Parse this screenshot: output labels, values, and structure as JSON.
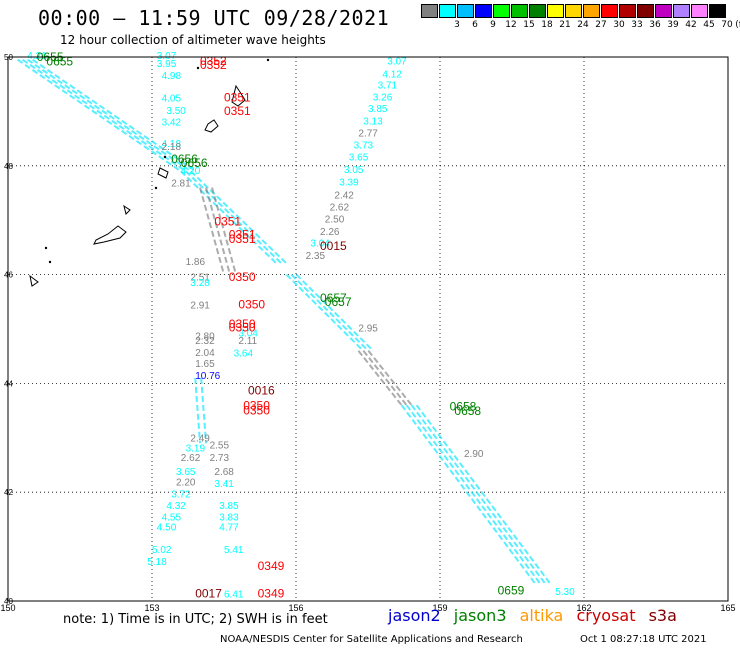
{
  "title": "00:00 – 11:59 UTC 09/28/2021",
  "subtitle": "12 hour collection of altimeter wave heights",
  "color_scale": {
    "unit": "(ft)",
    "swatches": [
      {
        "color": "#808080",
        "label": ""
      },
      {
        "color": "#00ffff",
        "label": "3"
      },
      {
        "color": "#00bfff",
        "label": "6"
      },
      {
        "color": "#0000ff",
        "label": "9"
      },
      {
        "color": "#00ff00",
        "label": "12"
      },
      {
        "color": "#00c000",
        "label": "15"
      },
      {
        "color": "#008000",
        "label": "18"
      },
      {
        "color": "#ffff00",
        "label": "21"
      },
      {
        "color": "#ffd700",
        "label": "24"
      },
      {
        "color": "#ffa500",
        "label": "27"
      },
      {
        "color": "#ff0000",
        "label": "30"
      },
      {
        "color": "#b00000",
        "label": "33"
      },
      {
        "color": "#800000",
        "label": "36"
      },
      {
        "color": "#c000c0",
        "label": "39"
      },
      {
        "color": "#b080ff",
        "label": "42"
      },
      {
        "color": "#ff80ff",
        "label": "45"
      },
      {
        "color": "#000000",
        "label": "70"
      }
    ]
  },
  "axes": {
    "lon_ticks": [
      "150",
      "153",
      "156",
      "159",
      "162",
      "165"
    ],
    "lat_ticks": [
      "50",
      "48",
      "46",
      "44",
      "42",
      "40"
    ]
  },
  "time_labels": [
    {
      "text": "0655",
      "lon": 150.6,
      "lat": 49.93,
      "color": "#008000"
    },
    {
      "text": "0655",
      "lon": 150.8,
      "lat": 49.84,
      "color": "#008000"
    },
    {
      "text": "0352",
      "lon": 154.0,
      "lat": 49.85,
      "color": "#ff0000"
    },
    {
      "text": "0352",
      "lon": 154.0,
      "lat": 49.78,
      "color": "#ff0000"
    },
    {
      "text": "0351",
      "lon": 154.5,
      "lat": 49.18,
      "color": "#ff0000"
    },
    {
      "text": "0351",
      "lon": 154.5,
      "lat": 48.93,
      "color": "#ff0000"
    },
    {
      "text": "0656",
      "lon": 153.4,
      "lat": 48.05,
      "color": "#008000"
    },
    {
      "text": "0656",
      "lon": 153.6,
      "lat": 47.98,
      "color": "#008000"
    },
    {
      "text": "0351",
      "lon": 154.3,
      "lat": 46.9,
      "color": "#ff0000"
    },
    {
      "text": "0351",
      "lon": 154.6,
      "lat": 46.66,
      "color": "#ff0000"
    },
    {
      "text": "0351",
      "lon": 154.6,
      "lat": 46.58,
      "color": "#ff0000"
    },
    {
      "text": "0015",
      "lon": 156.5,
      "lat": 46.45,
      "color": "#800000"
    },
    {
      "text": "0350",
      "lon": 154.6,
      "lat": 45.88,
      "color": "#ff0000"
    },
    {
      "text": "0657",
      "lon": 156.5,
      "lat": 45.5,
      "color": "#008000"
    },
    {
      "text": "0657",
      "lon": 156.6,
      "lat": 45.42,
      "color": "#008000"
    },
    {
      "text": "0350",
      "lon": 154.8,
      "lat": 45.38,
      "color": "#ff0000"
    },
    {
      "text": "0350",
      "lon": 154.6,
      "lat": 45.02,
      "color": "#ff0000"
    },
    {
      "text": "0350",
      "lon": 154.6,
      "lat": 44.95,
      "color": "#ff0000"
    },
    {
      "text": "0016",
      "lon": 155.0,
      "lat": 43.8,
      "color": "#800000"
    },
    {
      "text": "0350",
      "lon": 154.9,
      "lat": 43.52,
      "color": "#ff0000"
    },
    {
      "text": "0350",
      "lon": 154.9,
      "lat": 43.43,
      "color": "#ff0000"
    },
    {
      "text": "0658",
      "lon": 159.2,
      "lat": 43.5,
      "color": "#008000"
    },
    {
      "text": "0658",
      "lon": 159.3,
      "lat": 43.42,
      "color": "#008000"
    },
    {
      "text": "0349",
      "lon": 155.2,
      "lat": 40.57,
      "color": "#ff0000"
    },
    {
      "text": "0349",
      "lon": 155.2,
      "lat": 40.06,
      "color": "#ff0000"
    },
    {
      "text": "0017",
      "lon": 153.9,
      "lat": 40.06,
      "color": "#800000"
    },
    {
      "text": "0659",
      "lon": 160.2,
      "lat": 40.12,
      "color": "#008000"
    }
  ],
  "wave_labels": [
    {
      "text": "4.21",
      "lon": 150.4,
      "lat": 49.96,
      "color": "#00ffff"
    },
    {
      "text": "3.07",
      "lon": 153.1,
      "lat": 49.96,
      "color": "#00ffff"
    },
    {
      "text": "3.95",
      "lon": 153.1,
      "lat": 49.82,
      "color": "#00ffff"
    },
    {
      "text": "4.98",
      "lon": 153.2,
      "lat": 49.6,
      "color": "#00ffff"
    },
    {
      "text": "4.05",
      "lon": 153.2,
      "lat": 49.18,
      "color": "#00ffff"
    },
    {
      "text": "3.50",
      "lon": 153.3,
      "lat": 48.95,
      "color": "#00ffff"
    },
    {
      "text": "3.42",
      "lon": 153.2,
      "lat": 48.74,
      "color": "#00ffff"
    },
    {
      "text": "4.18",
      "lon": 153.2,
      "lat": 48.35,
      "color": "#00ffff"
    },
    {
      "text": "2.18",
      "lon": 153.2,
      "lat": 48.29,
      "color": "#808080"
    },
    {
      "text": "4.20",
      "lon": 153.6,
      "lat": 47.85,
      "color": "#00ffff"
    },
    {
      "text": "2.81",
      "lon": 153.4,
      "lat": 47.62,
      "color": "#808080"
    },
    {
      "text": "1.86",
      "lon": 153.7,
      "lat": 46.18,
      "color": "#808080"
    },
    {
      "text": "2.51",
      "lon": 153.8,
      "lat": 45.89,
      "color": "#808080"
    },
    {
      "text": "3.28",
      "lon": 153.8,
      "lat": 45.79,
      "color": "#00ffff"
    },
    {
      "text": "2.91",
      "lon": 153.8,
      "lat": 45.38,
      "color": "#808080"
    },
    {
      "text": "2.80",
      "lon": 153.9,
      "lat": 44.81,
      "color": "#808080"
    },
    {
      "text": "2.32",
      "lon": 153.9,
      "lat": 44.72,
      "color": "#808080"
    },
    {
      "text": "2.04",
      "lon": 153.9,
      "lat": 44.5,
      "color": "#808080"
    },
    {
      "text": "1.65",
      "lon": 153.9,
      "lat": 44.3,
      "color": "#808080"
    },
    {
      "text": "10.76",
      "lon": 153.9,
      "lat": 44.08,
      "color": "#0000ff"
    },
    {
      "text": "2.11",
      "lon": 154.8,
      "lat": 44.72,
      "color": "#808080"
    },
    {
      "text": "3.64",
      "lon": 154.7,
      "lat": 44.49,
      "color": "#00ffff"
    },
    {
      "text": "3.04",
      "lon": 154.8,
      "lat": 44.86,
      "color": "#00ffff"
    },
    {
      "text": "2.49",
      "lon": 153.8,
      "lat": 42.93,
      "color": "#808080"
    },
    {
      "text": "3.19",
      "lon": 153.7,
      "lat": 42.75,
      "color": "#00ffff"
    },
    {
      "text": "2.62",
      "lon": 153.6,
      "lat": 42.57,
      "color": "#808080"
    },
    {
      "text": "2.73",
      "lon": 154.2,
      "lat": 42.57,
      "color": "#808080"
    },
    {
      "text": "2.55",
      "lon": 154.2,
      "lat": 42.8,
      "color": "#808080"
    },
    {
      "text": "3.65",
      "lon": 153.5,
      "lat": 42.32,
      "color": "#00ffff"
    },
    {
      "text": "2.68",
      "lon": 154.3,
      "lat": 42.32,
      "color": "#808080"
    },
    {
      "text": "2.20",
      "lon": 153.5,
      "lat": 42.12,
      "color": "#808080"
    },
    {
      "text": "3.41",
      "lon": 154.3,
      "lat": 42.1,
      "color": "#00ffff"
    },
    {
      "text": "3.72",
      "lon": 153.4,
      "lat": 41.9,
      "color": "#00ffff"
    },
    {
      "text": "4.32",
      "lon": 153.3,
      "lat": 41.69,
      "color": "#00ffff"
    },
    {
      "text": "3.85",
      "lon": 154.4,
      "lat": 41.69,
      "color": "#00ffff"
    },
    {
      "text": "4.55",
      "lon": 153.2,
      "lat": 41.48,
      "color": "#00ffff"
    },
    {
      "text": "3.83",
      "lon": 154.4,
      "lat": 41.48,
      "color": "#00ffff"
    },
    {
      "text": "4.50",
      "lon": 153.1,
      "lat": 41.3,
      "color": "#00ffff"
    },
    {
      "text": "4.77",
      "lon": 154.4,
      "lat": 41.3,
      "color": "#00ffff"
    },
    {
      "text": "5.02",
      "lon": 153.0,
      "lat": 40.88,
      "color": "#00ffff"
    },
    {
      "text": "5.41",
      "lon": 154.5,
      "lat": 40.88,
      "color": "#00ffff"
    },
    {
      "text": "5.18",
      "lon": 152.9,
      "lat": 40.66,
      "color": "#00ffff"
    },
    {
      "text": "6.41",
      "lon": 154.5,
      "lat": 40.06,
      "color": "#00ffff"
    },
    {
      "text": "3.07",
      "lon": 157.9,
      "lat": 49.86,
      "color": "#00ffff"
    },
    {
      "text": "4.12",
      "lon": 157.8,
      "lat": 49.62,
      "color": "#00ffff"
    },
    {
      "text": "3.71",
      "lon": 157.7,
      "lat": 49.42,
      "color": "#00ffff"
    },
    {
      "text": "3.26",
      "lon": 157.6,
      "lat": 49.2,
      "color": "#00ffff"
    },
    {
      "text": "3.85",
      "lon": 157.5,
      "lat": 48.99,
      "color": "#00ffff"
    },
    {
      "text": "3.13",
      "lon": 157.4,
      "lat": 48.76,
      "color": "#00ffff"
    },
    {
      "text": "2.77",
      "lon": 157.3,
      "lat": 48.54,
      "color": "#808080"
    },
    {
      "text": "3.73",
      "lon": 157.2,
      "lat": 48.32,
      "color": "#00ffff"
    },
    {
      "text": "3.65",
      "lon": 157.1,
      "lat": 48.1,
      "color": "#00ffff"
    },
    {
      "text": "3.05",
      "lon": 157.0,
      "lat": 47.87,
      "color": "#00ffff"
    },
    {
      "text": "3.39",
      "lon": 156.9,
      "lat": 47.64,
      "color": "#00ffff"
    },
    {
      "text": "2.42",
      "lon": 156.8,
      "lat": 47.4,
      "color": "#808080"
    },
    {
      "text": "2.62",
      "lon": 156.7,
      "lat": 47.18,
      "color": "#808080"
    },
    {
      "text": "2.50",
      "lon": 156.6,
      "lat": 46.96,
      "color": "#808080"
    },
    {
      "text": "2.26",
      "lon": 156.5,
      "lat": 46.73,
      "color": "#808080"
    },
    {
      "text": "3.04",
      "lon": 156.3,
      "lat": 46.52,
      "color": "#00ffff"
    },
    {
      "text": "2.35",
      "lon": 156.2,
      "lat": 46.29,
      "color": "#808080"
    },
    {
      "text": "2.95",
      "lon": 157.3,
      "lat": 44.95,
      "color": "#808080"
    },
    {
      "text": "2.90",
      "lon": 159.5,
      "lat": 42.65,
      "color": "#808080"
    },
    {
      "text": "5.30",
      "lon": 161.4,
      "lat": 40.11,
      "color": "#00ffff"
    }
  ],
  "note": "note: 1) Time is in UTC; 2) SWH is in feet",
  "missions": [
    {
      "name": "jason2",
      "color": "#0000cc"
    },
    {
      "name": "jason3",
      "color": "#008000"
    },
    {
      "name": "altika",
      "color": "#ff9900"
    },
    {
      "name": "cryosat",
      "color": "#cc0000"
    },
    {
      "name": "s3a",
      "color": "#800000"
    }
  ],
  "credit": "NOAA/NESDIS Center for Satellite Applications and Research",
  "generated": "Oct  1 08:27:18 UTC 2021"
}
